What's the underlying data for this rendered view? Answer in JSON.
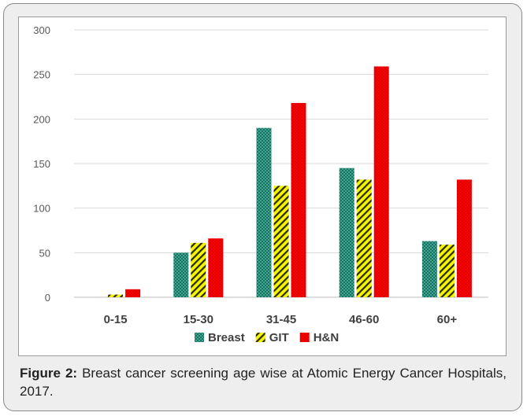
{
  "chart_data": {
    "type": "bar",
    "categories": [
      "0-15",
      "15-30",
      "31-45",
      "46-60",
      "60+"
    ],
    "series": [
      {
        "name": "Breast",
        "values": [
          0,
          50,
          190,
          145,
          63
        ],
        "color": "#2e8b7a",
        "pattern": "checker"
      },
      {
        "name": "GIT",
        "values": [
          3,
          61,
          125,
          132,
          59
        ],
        "color": "#e6e600",
        "pattern": "diagonal-stripes"
      },
      {
        "name": "H&N",
        "values": [
          9,
          66,
          218,
          259,
          132
        ],
        "color": "#ff0000",
        "pattern": "dots"
      }
    ],
    "ylim": [
      0,
      300
    ],
    "yticks": [
      0,
      50,
      100,
      150,
      200,
      250,
      300
    ],
    "grid": true,
    "legend": "bottom"
  },
  "caption": {
    "label": "Figure 2:",
    "text": " Breast cancer screening age wise at Atomic Energy Cancer Hospitals, 2017."
  }
}
